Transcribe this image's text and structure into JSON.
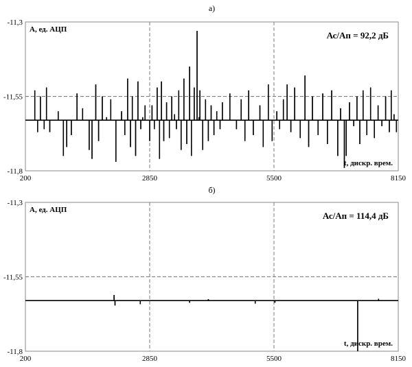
{
  "chart_data": [
    {
      "type": "line",
      "title": "а)",
      "ylabel": "А, ед. АЦП",
      "xlabel": "t, дискр. врем.",
      "annotation": "Ас/Ап = 92,2 дБ",
      "xlim": [
        200,
        8150
      ],
      "ylim": [
        -11.8,
        -11.3
      ],
      "x_ticks": [
        "200",
        "2850",
        "5500",
        "8150"
      ],
      "y_ticks": [
        "-11,3",
        "-11,55",
        "-11,8"
      ],
      "grid_x": [
        2850,
        5500
      ],
      "grid_y": [
        -11.55
      ],
      "baseline": -11.63,
      "spikes": [
        [
          400,
          -11.53
        ],
        [
          460,
          -11.67
        ],
        [
          520,
          -11.55
        ],
        [
          600,
          -11.66
        ],
        [
          650,
          -11.52
        ],
        [
          720,
          -11.67
        ],
        [
          900,
          -11.6
        ],
        [
          1010,
          -11.75
        ],
        [
          1080,
          -11.72
        ],
        [
          1180,
          -11.68
        ],
        [
          1300,
          -11.54
        ],
        [
          1420,
          -11.59
        ],
        [
          1560,
          -11.73
        ],
        [
          1620,
          -11.76
        ],
        [
          1700,
          -11.51
        ],
        [
          1760,
          -11.7
        ],
        [
          1840,
          -11.55
        ],
        [
          1930,
          -11.62
        ],
        [
          2020,
          -11.56
        ],
        [
          2130,
          -11.77
        ],
        [
          2250,
          -11.6
        ],
        [
          2320,
          -11.68
        ],
        [
          2380,
          -11.49
        ],
        [
          2440,
          -11.72
        ],
        [
          2480,
          -11.55
        ],
        [
          2550,
          -11.75
        ],
        [
          2600,
          -11.5
        ],
        [
          2660,
          -11.66
        ],
        [
          2700,
          -11.62
        ],
        [
          2750,
          -11.58
        ],
        [
          2850,
          -11.7
        ],
        [
          2900,
          -11.58
        ],
        [
          2950,
          -11.66
        ],
        [
          3010,
          -11.52
        ],
        [
          3060,
          -11.76
        ],
        [
          3100,
          -11.5
        ],
        [
          3150,
          -11.7
        ],
        [
          3210,
          -11.57
        ],
        [
          3270,
          -11.69
        ],
        [
          3320,
          -11.55
        ],
        [
          3380,
          -11.61
        ],
        [
          3420,
          -11.66
        ],
        [
          3470,
          -11.53
        ],
        [
          3520,
          -11.73
        ],
        [
          3580,
          -11.49
        ],
        [
          3640,
          -11.71
        ],
        [
          3700,
          -11.45
        ],
        [
          3740,
          -11.75
        ],
        [
          3800,
          -11.52
        ],
        [
          3860,
          -11.33
        ],
        [
          3900,
          -11.62
        ],
        [
          3920,
          -11.53
        ],
        [
          3980,
          -11.73
        ],
        [
          4040,
          -11.56
        ],
        [
          4100,
          -11.7
        ],
        [
          4160,
          -11.58
        ],
        [
          4220,
          -11.68
        ],
        [
          4280,
          -11.6
        ],
        [
          4350,
          -11.66
        ],
        [
          4400,
          -11.57
        ],
        [
          4480,
          -11.63
        ],
        [
          4560,
          -11.54
        ],
        [
          4700,
          -11.66
        ],
        [
          4800,
          -11.56
        ],
        [
          4880,
          -11.7
        ],
        [
          4960,
          -11.53
        ],
        [
          5060,
          -11.68
        ],
        [
          5200,
          -11.58
        ],
        [
          5270,
          -11.72
        ],
        [
          5380,
          -11.51
        ],
        [
          5460,
          -11.7
        ],
        [
          5560,
          -11.6
        ],
        [
          5620,
          -11.66
        ],
        [
          5700,
          -11.56
        ],
        [
          5780,
          -11.51
        ],
        [
          5860,
          -11.67
        ],
        [
          5940,
          -11.52
        ],
        [
          6060,
          -11.69
        ],
        [
          6160,
          -11.48
        ],
        [
          6240,
          -11.72
        ],
        [
          6320,
          -11.55
        ],
        [
          6440,
          -11.68
        ],
        [
          6540,
          -11.54
        ],
        [
          6640,
          -11.71
        ],
        [
          6730,
          -11.53
        ],
        [
          6860,
          -11.75
        ],
        [
          6920,
          -11.59
        ],
        [
          7000,
          -11.79
        ],
        [
          7040,
          -11.75
        ],
        [
          7110,
          -11.57
        ],
        [
          7200,
          -11.65
        ],
        [
          7270,
          -11.55
        ],
        [
          7330,
          -11.71
        ],
        [
          7400,
          -11.53
        ],
        [
          7480,
          -11.68
        ],
        [
          7560,
          -11.52
        ],
        [
          7640,
          -11.69
        ],
        [
          7720,
          -11.58
        ],
        [
          7800,
          -11.65
        ],
        [
          7880,
          -11.55
        ],
        [
          7960,
          -11.67
        ],
        [
          8000,
          -11.53
        ],
        [
          8060,
          -11.61
        ],
        [
          8110,
          -11.67
        ]
      ]
    },
    {
      "type": "line",
      "title": "б)",
      "ylabel": "А, ед. АЦП",
      "xlabel": "t, дискр. врем.",
      "annotation": "Ас/Ап = 114,4 дБ",
      "xlim": [
        200,
        8150
      ],
      "ylim": [
        -11.8,
        -11.3
      ],
      "x_ticks": [
        "200",
        "2850",
        "5500",
        "8150"
      ],
      "y_ticks": [
        "-11,3",
        "-11,55",
        "-11,8"
      ],
      "grid_x": [
        2850,
        5500
      ],
      "grid_y": [
        -11.55
      ],
      "baseline": -11.63,
      "spikes": [
        [
          2090,
          -11.611
        ],
        [
          2110,
          -11.646
        ],
        [
          2650,
          -11.642
        ],
        [
          3700,
          -11.637
        ],
        [
          4100,
          -11.625
        ],
        [
          5100,
          -11.64
        ],
        [
          5520,
          -11.637
        ],
        [
          7285,
          -11.8
        ],
        [
          7730,
          -11.624
        ]
      ]
    }
  ]
}
